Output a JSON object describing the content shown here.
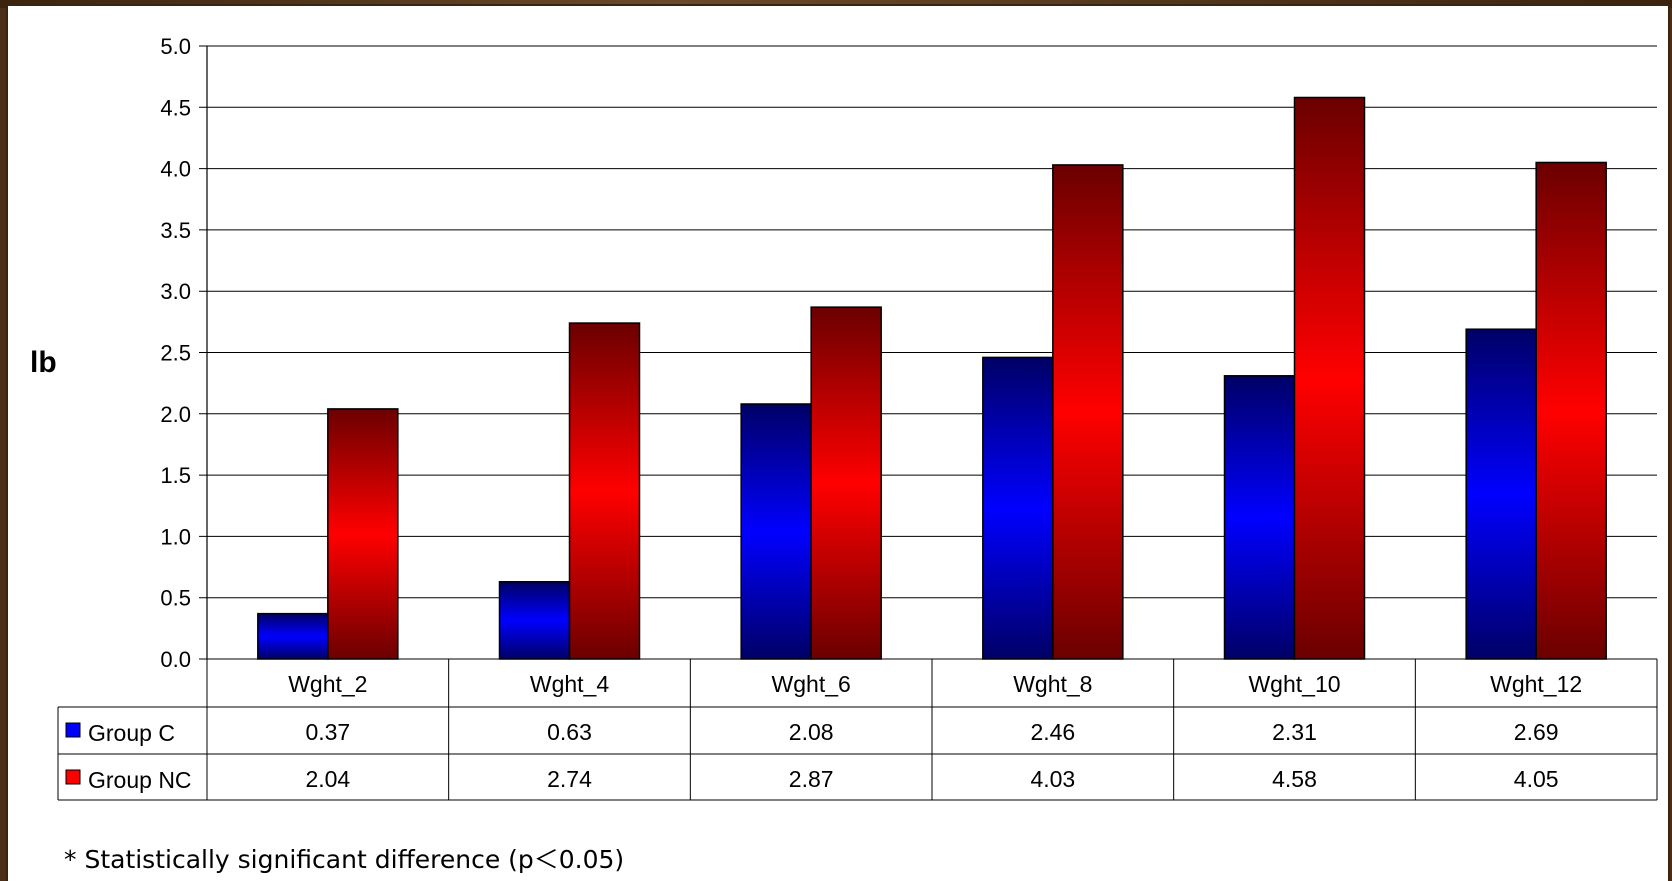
{
  "chart_data": {
    "type": "bar",
    "ylabel": "lb",
    "ylim": [
      0,
      5.0
    ],
    "yticks": [
      "0.0",
      "0.5",
      "1.0",
      "1.5",
      "2.0",
      "2.5",
      "3.0",
      "3.5",
      "4.0",
      "4.5",
      "5.0"
    ],
    "grid": true,
    "categories": [
      "Wght_2",
      "Wght_4",
      "Wght_6",
      "Wght_8",
      "Wght_10",
      "Wght_12"
    ],
    "series": [
      {
        "name": "Group C",
        "color": "#0000ff",
        "values": [
          0.37,
          0.63,
          2.08,
          2.46,
          2.31,
          2.69
        ],
        "labels": [
          "0.37",
          "0.63",
          "2.08",
          "2.46",
          "2.31",
          "2.69"
        ]
      },
      {
        "name": "Group NC",
        "color": "#ff0000",
        "values": [
          2.04,
          2.74,
          2.87,
          4.03,
          4.58,
          4.05
        ],
        "labels": [
          "2.04",
          "2.74",
          "2.87",
          "4.03",
          "4.58",
          "4.05"
        ]
      }
    ],
    "data_table": true
  },
  "footnote": "*  Statistically significant difference  (p＜0.05)"
}
